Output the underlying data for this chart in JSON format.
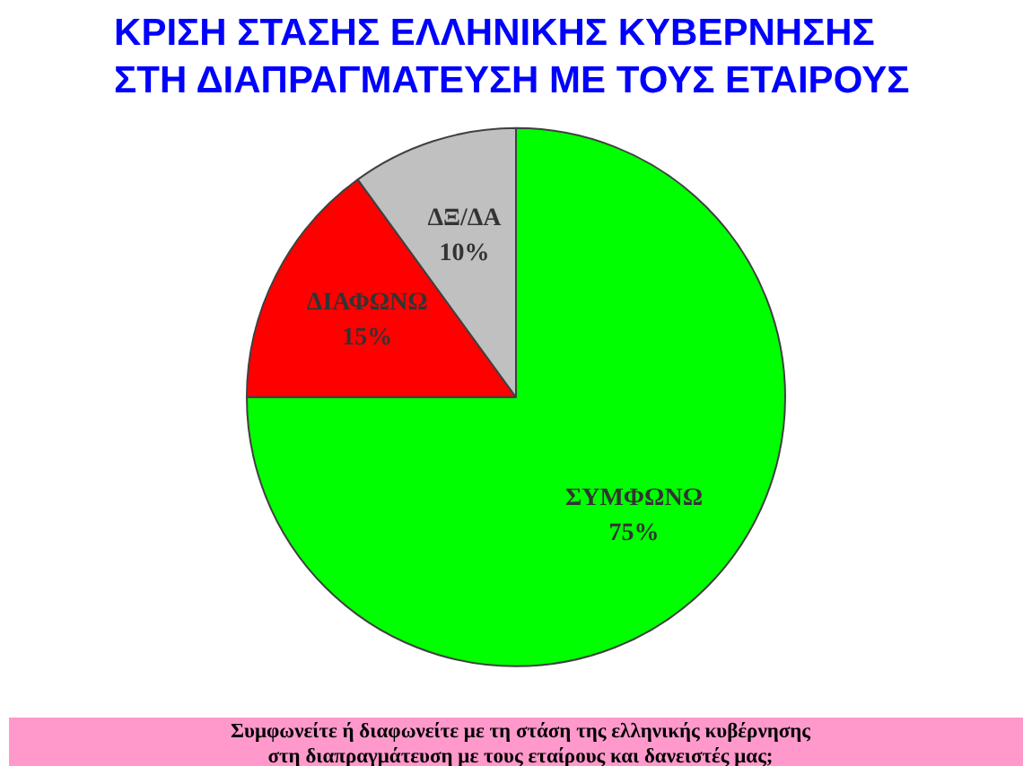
{
  "chart_data": {
    "type": "pie",
    "title": "ΚΡΙΣΗ ΣΤΑΣΗΣ ΕΛΛΗΝΙΚΗΣ ΚΥΒΕΡΝΗΣΗΣ\nΣΤΗ ΔΙΑΠΡΑΓΜΑΤΕΥΣΗ ΜΕ ΤΟΥΣ ΕΤΑΙΡΟΥΣ",
    "categories": [
      "ΣΥΜΦΩΝΩ",
      "ΔΙΑΦΩΝΩ",
      "ΔΞ/ΔΑ"
    ],
    "values": [
      75,
      15,
      10
    ],
    "colors": [
      "#00ff00",
      "#ff0000",
      "#c0c0c0"
    ],
    "value_labels": [
      "75%",
      "15%",
      "10%"
    ],
    "annotations": [
      "Συμφωνείτε ή διαφωνείτε με τη στάση της ελληνικής κυβέρνησης\nστη διαπραγμάτευση με τους εταίρους και δανειστές μας;"
    ]
  }
}
